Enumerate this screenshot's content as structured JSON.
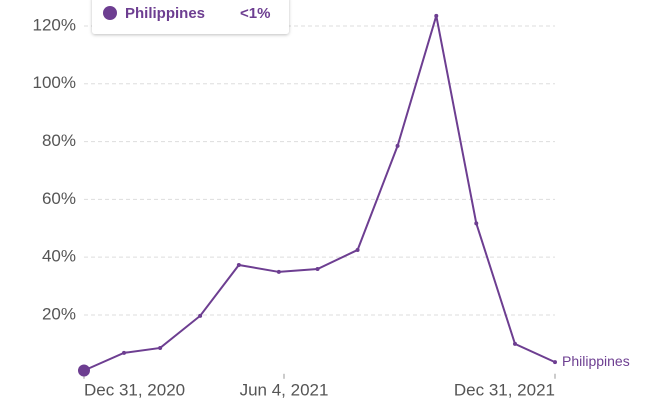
{
  "chart_data": {
    "type": "line",
    "x": [
      "2020-12-31",
      "2021-01-31",
      "2021-02-28",
      "2021-03-31",
      "2021-04-30",
      "2021-05-31",
      "2021-06-30",
      "2021-07-31",
      "2021-08-31",
      "2021-09-30",
      "2021-10-31",
      "2021-11-30",
      "2021-12-31"
    ],
    "series": [
      {
        "name": "Philippines",
        "color": "#6d3e91",
        "values": [
          0.8,
          6.9,
          8.6,
          19.7,
          37.3,
          34.9,
          35.9,
          42.5,
          78.5,
          123.5,
          51.7,
          10,
          3.7
        ],
        "value_labels": [
          "<1%",
          null,
          null,
          null,
          null,
          null,
          null,
          null,
          null,
          null,
          null,
          null,
          null
        ]
      }
    ],
    "xlim": [
      "2020-12-31",
      "2021-12-31"
    ],
    "xticks": [
      {
        "value": "2020-12-31",
        "label": "Dec 31, 2020"
      },
      {
        "value": "2021-06-04",
        "label": "Jun 4, 2021"
      },
      {
        "value": "2021-12-31",
        "label": "Dec 31, 2021"
      }
    ],
    "ylim": [
      0,
      125
    ],
    "yticks": [
      {
        "value": 20,
        "label": "20%"
      },
      {
        "value": 40,
        "label": "40%"
      },
      {
        "value": 60,
        "label": "60%"
      },
      {
        "value": 80,
        "label": "80%"
      },
      {
        "value": 100,
        "label": "100%"
      },
      {
        "value": 120,
        "label": "120%"
      }
    ],
    "grid": true
  }
}
